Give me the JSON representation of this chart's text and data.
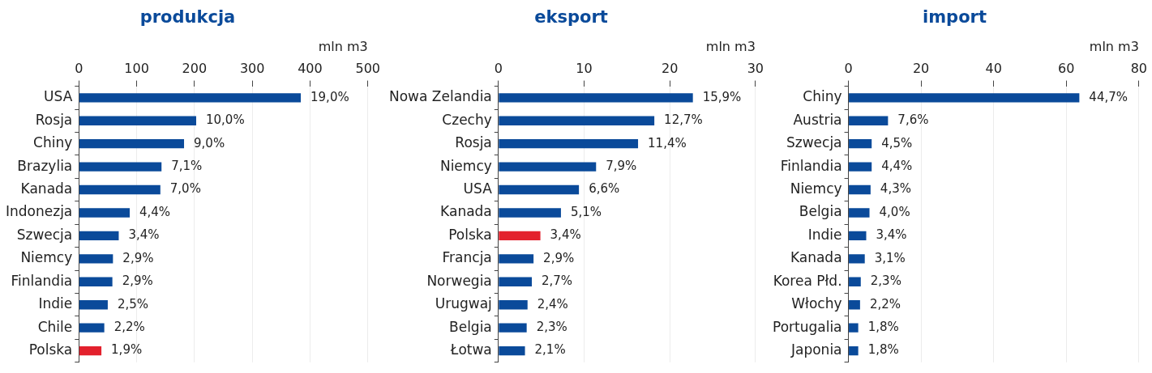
{
  "chart_data": [
    {
      "type": "bar",
      "orientation": "horizontal",
      "title": "produkcja",
      "xlabel": "mln m3",
      "categories": [
        "USA",
        "Rosja",
        "Chiny",
        "Brazylia",
        "Kanada",
        "Indonezja",
        "Szwecja",
        "Niemcy",
        "Finlandia",
        "Indie",
        "Chile",
        "Polska"
      ],
      "values": [
        384,
        203,
        182,
        143,
        141,
        88,
        69,
        59,
        58,
        50,
        44,
        39
      ],
      "colors": [
        "#0a4a9a",
        "#0a4a9a",
        "#0a4a9a",
        "#0a4a9a",
        "#0a4a9a",
        "#0a4a9a",
        "#0a4a9a",
        "#0a4a9a",
        "#0a4a9a",
        "#0a4a9a",
        "#0a4a9a",
        "#e3212d"
      ],
      "xlim": [
        0,
        500
      ],
      "xticks": [
        0,
        100,
        200,
        300,
        400,
        500
      ],
      "grid": "x",
      "annotations": [
        {
          "text": "19,0%",
          "x": 384,
          "y": "USA"
        },
        {
          "text": "10,0%",
          "x": 203,
          "y": "Rosja"
        },
        {
          "text": "9,0%",
          "x": 182,
          "y": "Chiny"
        },
        {
          "text": "7,1%",
          "x": 143,
          "y": "Brazylia"
        },
        {
          "text": "7,0%",
          "x": 141,
          "y": "Kanada"
        },
        {
          "text": "4,4%",
          "x": 88,
          "y": "Indonezja"
        },
        {
          "text": "3,4%",
          "x": 69,
          "y": "Szwecja"
        },
        {
          "text": "2,9%",
          "x": 59,
          "y": "Niemcy"
        },
        {
          "text": "2,9%",
          "x": 58,
          "y": "Finlandia"
        },
        {
          "text": "2,5%",
          "x": 50,
          "y": "Indie"
        },
        {
          "text": "2,2%",
          "x": 44,
          "y": "Chile"
        },
        {
          "text": "1,9%",
          "x": 39,
          "y": "Polska"
        }
      ]
    },
    {
      "type": "bar",
      "orientation": "horizontal",
      "title": "eksport",
      "xlabel": "mln m3",
      "categories": [
        "Nowa Zelandia",
        "Czechy",
        "Rosja",
        "Niemcy",
        "USA",
        "Kanada",
        "Polska",
        "Francja",
        "Norwegia",
        "Urugwaj",
        "Belgia",
        "Łotwa"
      ],
      "values": [
        22.7,
        18.2,
        16.3,
        11.4,
        9.4,
        7.3,
        4.9,
        4.1,
        3.9,
        3.4,
        3.3,
        3.1
      ],
      "colors": [
        "#0a4a9a",
        "#0a4a9a",
        "#0a4a9a",
        "#0a4a9a",
        "#0a4a9a",
        "#0a4a9a",
        "#e3212d",
        "#0a4a9a",
        "#0a4a9a",
        "#0a4a9a",
        "#0a4a9a",
        "#0a4a9a"
      ],
      "xlim": [
        0,
        30
      ],
      "xticks": [
        0,
        10,
        20,
        30
      ],
      "grid": "x",
      "annotations": [
        {
          "text": "15,9%",
          "x": 22.7,
          "y": "Nowa Zelandia"
        },
        {
          "text": "12,7%",
          "x": 18.2,
          "y": "Czechy"
        },
        {
          "text": "11,4%",
          "x": 16.3,
          "y": "Rosja"
        },
        {
          "text": "7,9%",
          "x": 11.4,
          "y": "Niemcy"
        },
        {
          "text": "6,6%",
          "x": 9.4,
          "y": "USA"
        },
        {
          "text": "5,1%",
          "x": 7.3,
          "y": "Kanada"
        },
        {
          "text": "3,4%",
          "x": 4.9,
          "y": "Polska"
        },
        {
          "text": "2,9%",
          "x": 4.1,
          "y": "Francja"
        },
        {
          "text": "2,7%",
          "x": 3.9,
          "y": "Norwegia"
        },
        {
          "text": "2,4%",
          "x": 3.4,
          "y": "Urugwaj"
        },
        {
          "text": "2,3%",
          "x": 3.3,
          "y": "Belgia"
        },
        {
          "text": "2,1%",
          "x": 3.1,
          "y": "Łotwa"
        }
      ]
    },
    {
      "type": "bar",
      "orientation": "horizontal",
      "title": "import",
      "xlabel": "mln m3",
      "categories": [
        "Chiny",
        "Austria",
        "Szwecja",
        "Finlandia",
        "Niemcy",
        "Belgia",
        "Indie",
        "Kanada",
        "Korea Płd.",
        "Włochy",
        "Portugalia",
        "Japonia"
      ],
      "values": [
        63.6,
        10.9,
        6.4,
        6.4,
        6.1,
        5.8,
        4.9,
        4.5,
        3.4,
        3.2,
        2.7,
        2.7
      ],
      "colors": [
        "#0a4a9a",
        "#0a4a9a",
        "#0a4a9a",
        "#0a4a9a",
        "#0a4a9a",
        "#0a4a9a",
        "#0a4a9a",
        "#0a4a9a",
        "#0a4a9a",
        "#0a4a9a",
        "#0a4a9a",
        "#0a4a9a"
      ],
      "xlim": [
        0,
        80
      ],
      "xticks": [
        0,
        20,
        40,
        60,
        80
      ],
      "grid": "x",
      "annotations": [
        {
          "text": "44,7%",
          "x": 63.6,
          "y": "Chiny"
        },
        {
          "text": "7,6%",
          "x": 10.9,
          "y": "Austria"
        },
        {
          "text": "4,5%",
          "x": 6.4,
          "y": "Szwecja"
        },
        {
          "text": "4,4%",
          "x": 6.4,
          "y": "Finlandia"
        },
        {
          "text": "4,3%",
          "x": 6.1,
          "y": "Niemcy"
        },
        {
          "text": "4,0%",
          "x": 5.8,
          "y": "Belgia"
        },
        {
          "text": "3,4%",
          "x": 4.9,
          "y": "Indie"
        },
        {
          "text": "3,1%",
          "x": 4.5,
          "y": "Kanada"
        },
        {
          "text": "2,3%",
          "x": 3.4,
          "y": "Korea Płd."
        },
        {
          "text": "2,2%",
          "x": 3.2,
          "y": "Włochy"
        },
        {
          "text": "1,8%",
          "x": 2.7,
          "y": "Portugalia"
        },
        {
          "text": "1,8%",
          "x": 2.7,
          "y": "Japonia"
        }
      ]
    }
  ]
}
